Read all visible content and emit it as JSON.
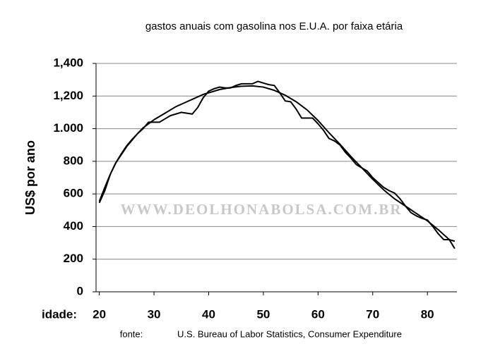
{
  "chart_data": {
    "type": "line",
    "title": "gastos anuais com gasolina nos E.U.A. por faixa etária",
    "ylabel": "US$ por ano",
    "xlabel": "idade:",
    "watermark": "WWW.DEOLHONABOLSA.COM.BR",
    "source_label": "fonte:",
    "source": "U.S. Bureau of Labor Statistics, Consumer Expenditure",
    "xlim": [
      19.4,
      85.4
    ],
    "xticks": [
      20,
      30,
      40,
      50,
      60,
      70,
      80
    ],
    "ylim": [
      0,
      1400
    ],
    "yticks": [
      0,
      200,
      400,
      600,
      800,
      {
        "value": 1000,
        "label": "1.000"
      },
      {
        "value": 1200,
        "label": "1,200"
      },
      {
        "value": 1400,
        "label": "1,400"
      }
    ],
    "grid": true,
    "series": [
      {
        "color": "#000000",
        "x": [
          20,
          21,
          22,
          23,
          24,
          25,
          26,
          27,
          28,
          29,
          30,
          31,
          32,
          33,
          34,
          35,
          36,
          37,
          38,
          39,
          40,
          41,
          42,
          43,
          44,
          45,
          46,
          47,
          48,
          49,
          50,
          51,
          52,
          53,
          54,
          55,
          56,
          57,
          58,
          59,
          60,
          61,
          62,
          63,
          64,
          65,
          66,
          67,
          68,
          69,
          70,
          71,
          72,
          73,
          74,
          75,
          76,
          77,
          78,
          79,
          80,
          81,
          82,
          83,
          84,
          85
        ],
        "values": [
          545,
          620,
          720,
          790,
          840,
          890,
          930,
          970,
          1000,
          1040,
          1040,
          1040,
          1060,
          1080,
          1090,
          1100,
          1095,
          1090,
          1130,
          1190,
          1230,
          1245,
          1255,
          1250,
          1250,
          1265,
          1275,
          1275,
          1275,
          1290,
          1280,
          1270,
          1265,
          1220,
          1170,
          1165,
          1120,
          1065,
          1065,
          1065,
          1030,
          990,
          940,
          925,
          900,
          855,
          820,
          780,
          760,
          740,
          700,
          670,
          640,
          620,
          605,
          570,
          525,
          485,
          465,
          450,
          440,
          400,
          355,
          320,
          320,
          310
        ]
      },
      {
        "color": "#000000",
        "x": [
          20,
          21,
          22,
          23,
          24,
          25,
          26,
          27,
          28,
          29,
          30,
          31,
          32,
          33,
          34,
          35,
          36,
          37,
          38,
          39,
          40,
          42,
          44,
          46,
          48,
          50,
          52,
          54,
          56,
          58,
          60,
          62,
          64,
          66,
          68,
          70,
          72,
          74,
          76,
          78,
          80,
          82,
          84,
          85
        ],
        "values": [
          555,
          640,
          720,
          790,
          845,
          895,
          935,
          970,
          1005,
          1030,
          1055,
          1075,
          1095,
          1115,
          1135,
          1150,
          1165,
          1180,
          1195,
          1210,
          1220,
          1240,
          1252,
          1260,
          1262,
          1255,
          1235,
          1205,
          1165,
          1115,
          1050,
          975,
          905,
          830,
          760,
          690,
          625,
          570,
          525,
          480,
          435,
          380,
          320,
          265
        ]
      }
    ]
  }
}
